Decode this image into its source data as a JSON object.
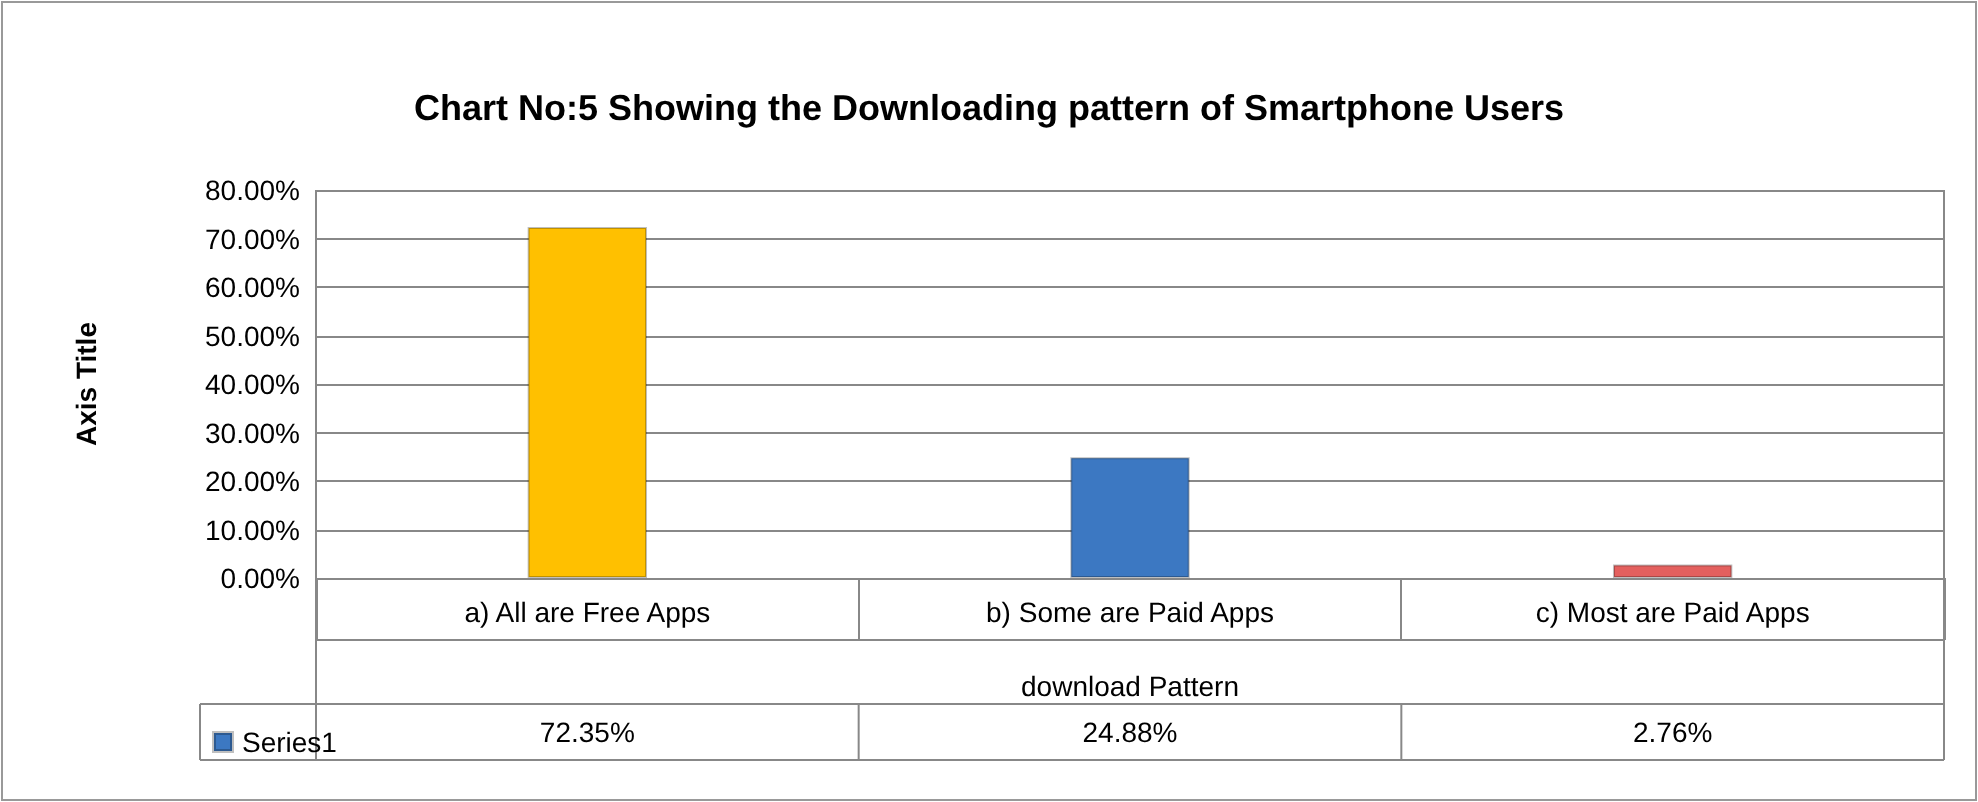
{
  "chart_data": {
    "type": "bar",
    "title": "Chart No:5 Showing the Downloading pattern of Smartphone Users",
    "xlabel": "download Pattern",
    "ylabel": "Axis Title",
    "categories": [
      "a) All are Free Apps",
      "b) Some are Paid Apps",
      "c) Most are Paid Apps"
    ],
    "series": [
      {
        "name": "Series1",
        "color": "#3c78c2",
        "colors": [
          "#ffc000",
          "#3c78c2",
          "#e4605e"
        ],
        "values": [
          72.35,
          24.88,
          2.76
        ],
        "value_labels": [
          "72.35%",
          "24.88%",
          "2.76%"
        ]
      }
    ],
    "ylim": [
      0,
      80
    ],
    "yticks": [
      {
        "value": 0,
        "label": "0.00%"
      },
      {
        "value": 10,
        "label": "10.00%"
      },
      {
        "value": 20,
        "label": "20.00%"
      },
      {
        "value": 30,
        "label": "30.00%"
      },
      {
        "value": 40,
        "label": "40.00%"
      },
      {
        "value": 50,
        "label": "50.00%"
      },
      {
        "value": 60,
        "label": "60.00%"
      },
      {
        "value": 70,
        "label": "70.00%"
      },
      {
        "value": 80,
        "label": "80.00%"
      }
    ],
    "grid": "y",
    "legend": "bottom"
  }
}
